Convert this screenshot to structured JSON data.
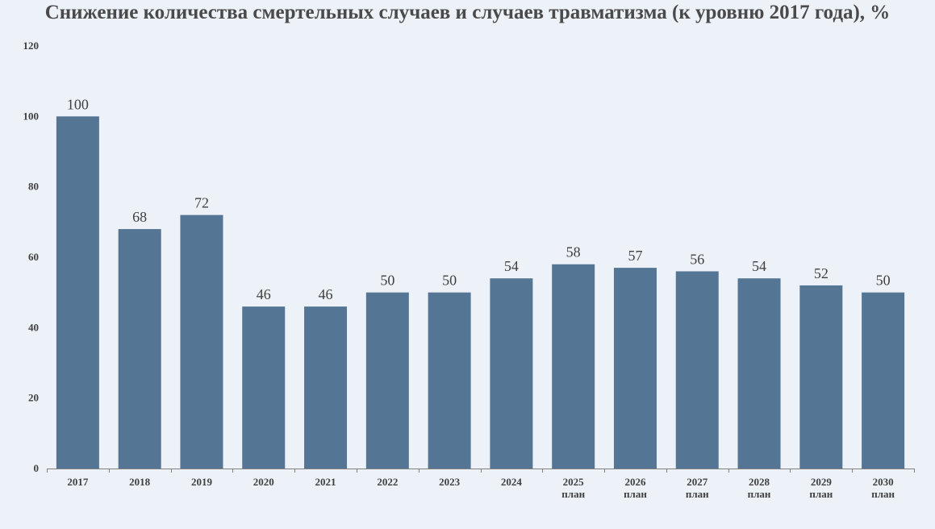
{
  "chart_data": {
    "type": "bar",
    "title": "Снижение количества смертельных случаев и случаев травматизма (к уровню 2017 года), %",
    "xlabel": "",
    "ylabel": "",
    "ylim": [
      0,
      120
    ],
    "yticks": [
      0,
      20,
      40,
      60,
      80,
      100,
      120
    ],
    "categories": [
      "2017",
      "2018",
      "2019",
      "2020",
      "2021",
      "2022",
      "2023",
      "2024",
      "2025",
      "2026",
      "2027",
      "2028",
      "2029",
      "2030"
    ],
    "category_notes": [
      "",
      "",
      "",
      "",
      "",
      "",
      "",
      "",
      "план",
      "план",
      "план",
      "план",
      "план",
      "план"
    ],
    "values": [
      100,
      68,
      72,
      46,
      46,
      50,
      50,
      54,
      58,
      57,
      56,
      54,
      52,
      50
    ],
    "grid": false,
    "legend": "none",
    "colors": {
      "bar": "#547593",
      "axis": "#808080",
      "text": "#404040",
      "background": "#edf1f8"
    }
  }
}
